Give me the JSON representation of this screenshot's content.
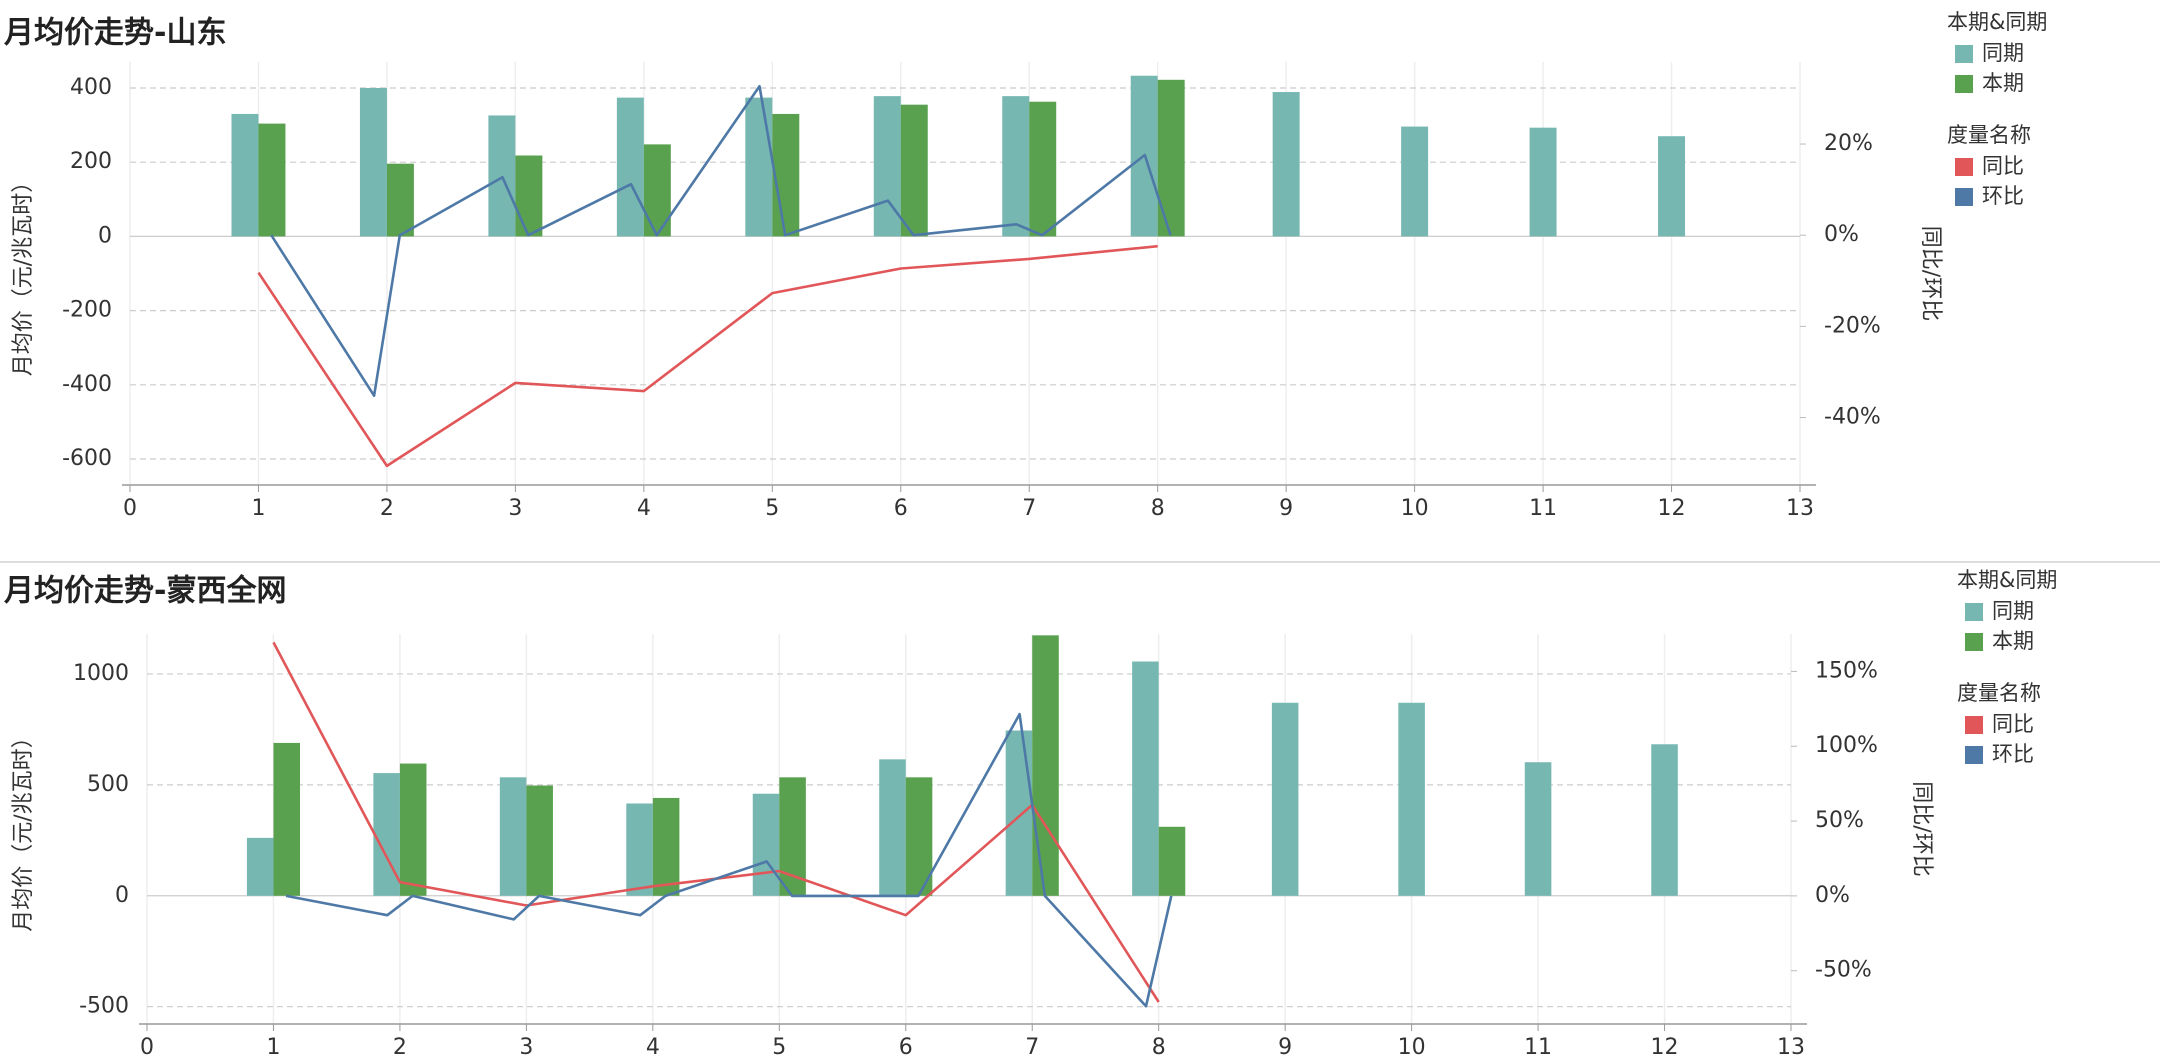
{
  "chart_data": [
    {
      "type": "combo",
      "title": "月均价走势-山东",
      "y_label": "月均价（元/兆瓦时）",
      "y2_label": "同比/环比",
      "xlim": [
        0,
        13
      ],
      "xticks": [
        0,
        1,
        2,
        3,
        4,
        5,
        6,
        7,
        8,
        9,
        10,
        11,
        12,
        13
      ],
      "ylim": [
        -670,
        470
      ],
      "yticks": [
        400,
        200,
        0,
        -200,
        -400,
        -600
      ],
      "y2lim": [
        -54.8,
        38
      ],
      "y2ticks": [
        {
          "value": 20,
          "label": "20%"
        },
        {
          "value": 0,
          "label": "0%"
        },
        {
          "value": -20,
          "label": "-20%"
        },
        {
          "value": -40,
          "label": "-40%"
        }
      ],
      "grid": true,
      "legends": [
        {
          "title": "本期&同期"
        },
        {
          "title": "度量名称"
        }
      ],
      "series": [
        {
          "name": "同期",
          "type": "bar",
          "color": "#76b7b2",
          "x": [
            1,
            2,
            3,
            4,
            5,
            6,
            7,
            8,
            9,
            10,
            11,
            12
          ],
          "values": [
            330,
            400,
            326,
            374,
            374,
            378,
            378,
            433,
            389,
            296,
            293,
            270
          ]
        },
        {
          "name": "本期",
          "type": "bar",
          "color": "#59a14f",
          "x": [
            1,
            2,
            3,
            4,
            5,
            6,
            7,
            8
          ],
          "values": [
            304,
            196,
            218,
            248,
            330,
            355,
            363,
            422
          ]
        },
        {
          "name": "同比",
          "type": "line",
          "axis": "y2",
          "color": "#e15759",
          "x": [
            1,
            2,
            3,
            4,
            5,
            6,
            7,
            8
          ],
          "values": [
            -8.2,
            -50.6,
            -32.4,
            -34.2,
            -12.7,
            -7.3,
            -5.2,
            -2.4
          ]
        },
        {
          "name": "环比",
          "type": "line",
          "axis": "y2",
          "color": "#4e79a7",
          "x": [
            1.1,
            1.9,
            2.1,
            2.9,
            3.1,
            3.9,
            4.1,
            4.9,
            5.1,
            5.9,
            6.1,
            6.9,
            7.1,
            7.9,
            8.1
          ],
          "values": [
            0,
            -35.2,
            0,
            12.7,
            0,
            11.2,
            0,
            32.7,
            0,
            7.6,
            0,
            2.4,
            0,
            17.6,
            0
          ]
        }
      ]
    },
    {
      "type": "combo",
      "title": "月均价走势-蒙西全网",
      "y_label": "月均价（元/兆瓦时）",
      "y2_label": "同比/环比",
      "xlim": [
        0,
        13
      ],
      "xticks": [
        0,
        1,
        2,
        3,
        4,
        5,
        6,
        7,
        8,
        9,
        10,
        11,
        12,
        13
      ],
      "ylim": [
        -578,
        1180
      ],
      "yticks": [
        1000,
        500,
        0,
        -500
      ],
      "y2lim": [
        -85.6,
        175
      ],
      "y2ticks": [
        {
          "value": 150,
          "label": "150%"
        },
        {
          "value": 100,
          "label": "100%"
        },
        {
          "value": 50,
          "label": "50%"
        },
        {
          "value": 0,
          "label": "0%"
        },
        {
          "value": -50,
          "label": "-50%"
        }
      ],
      "grid": true,
      "legends": [
        {
          "title": "本期&同期"
        },
        {
          "title": "度量名称"
        }
      ],
      "series": [
        {
          "name": "同期",
          "type": "bar",
          "color": "#76b7b2",
          "x": [
            1,
            2,
            3,
            4,
            5,
            6,
            7,
            8,
            9,
            10,
            11,
            12
          ],
          "values": [
            261,
            553,
            534,
            416,
            460,
            615,
            745,
            1056,
            870,
            870,
            602,
            683
          ]
        },
        {
          "name": "本期",
          "type": "bar",
          "color": "#59a14f",
          "x": [
            1,
            2,
            3,
            4,
            5,
            6,
            7,
            8
          ],
          "values": [
            689,
            596,
            497,
            441,
            534,
            534,
            1174,
            311
          ]
        },
        {
          "name": "同比",
          "type": "line",
          "axis": "y2",
          "color": "#e15759",
          "x": [
            1,
            2,
            3,
            4,
            5,
            6,
            7,
            8
          ],
          "values": [
            169.4,
            9.2,
            -6.4,
            6.4,
            16.6,
            -12.9,
            60.8,
            -70.9
          ]
        },
        {
          "name": "环比",
          "type": "line",
          "axis": "y2",
          "color": "#4e79a7",
          "x": [
            1.1,
            1.9,
            2.1,
            2.9,
            3.1,
            3.9,
            4.1,
            4.9,
            5.1,
            5.9,
            6.1,
            6.9,
            7.1,
            7.9,
            8.1
          ],
          "values": [
            0,
            -12.9,
            0,
            -15.7,
            0,
            -12.9,
            0,
            23,
            0,
            0,
            0,
            121.5,
            0,
            -73.7,
            0
          ]
        }
      ]
    }
  ]
}
